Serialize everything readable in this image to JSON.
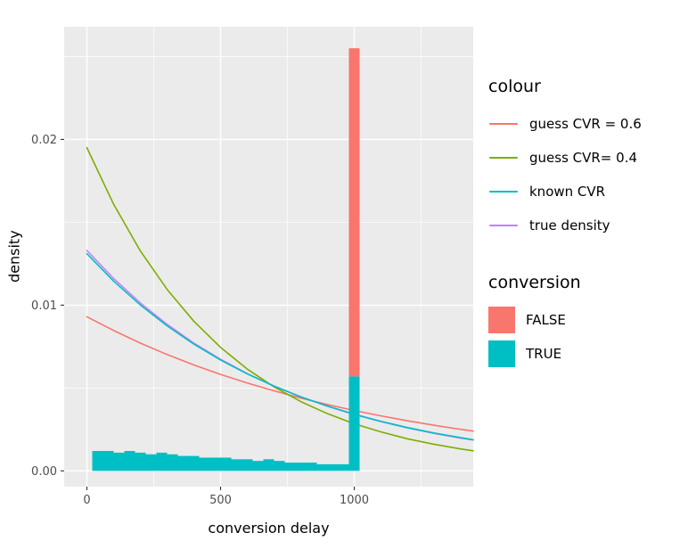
{
  "figure": {
    "background": "#FFFFFF",
    "panel_bg": "#EBEBEB",
    "grid_color": "#FFFFFF",
    "tick_color": "#333333",
    "tick_label_color": "#4D4D4D",
    "axis_title_color": "#000000"
  },
  "chart_data": {
    "type": "histogram+line",
    "title": "",
    "xlabel": "conversion delay",
    "ylabel": "density",
    "xlim": [
      -85,
      1445
    ],
    "ylim": [
      -0.00095,
      0.0268
    ],
    "grid": true,
    "legend_position": "right",
    "x_ticks": [
      {
        "value": 0,
        "label": "0"
      },
      {
        "value": 500,
        "label": "500"
      },
      {
        "value": 1000,
        "label": "1000"
      }
    ],
    "y_ticks": [
      {
        "value": 0,
        "label": "0.00"
      },
      {
        "value": 0.01,
        "label": "0.01"
      },
      {
        "value": 0.02,
        "label": "0.02"
      }
    ],
    "x_minor": [
      250,
      750,
      1250
    ],
    "y_minor": [
      0.005,
      0.015,
      0.025
    ],
    "histogram": {
      "bin_width": 40,
      "true_color": "#00BFC4",
      "false_color": "#F8766D",
      "true_bins": {
        "x0": 20,
        "heights": [
          0.0012,
          0.0012,
          0.0011,
          0.0012,
          0.0011,
          0.001,
          0.0011,
          0.001,
          0.0009,
          0.0009,
          0.0008,
          0.0008,
          0.0008,
          0.0007,
          0.0007,
          0.0006,
          0.0007,
          0.0006,
          0.0005,
          0.0005,
          0.0005,
          0.0004,
          0.0004,
          0.0004
        ]
      },
      "stacked_bin": {
        "x0": 980,
        "true_height": 0.0057,
        "false_height": 0.0198
      }
    },
    "line_x": [
      0,
      100,
      200,
      300,
      400,
      500,
      600,
      700,
      800,
      900,
      1000,
      1100,
      1200,
      1300,
      1400,
      1445
    ],
    "series": [
      {
        "name": "guess CVR = 0.6",
        "color": "#F8766D",
        "y": [
          0.0093,
          0.00847,
          0.00771,
          0.00702,
          0.00639,
          0.00582,
          0.0053,
          0.00483,
          0.00439,
          0.004,
          0.00364,
          0.00332,
          0.00302,
          0.00275,
          0.0025,
          0.0024
        ]
      },
      {
        "name": "guess CVR= 0.4",
        "color": "#7CAE00",
        "y": [
          0.0195,
          0.01609,
          0.01327,
          0.01095,
          0.00903,
          0.00745,
          0.00614,
          0.00507,
          0.00418,
          0.00345,
          0.00284,
          0.00235,
          0.00193,
          0.0016,
          0.00132,
          0.00121
        ]
      },
      {
        "name": "true density",
        "color": "#C77CFF",
        "y": [
          0.0133,
          0.01161,
          0.01013,
          0.00884,
          0.00771,
          0.00673,
          0.00587,
          0.00512,
          0.00447,
          0.0039,
          0.0034,
          0.00297,
          0.00259,
          0.00226,
          0.00197,
          0.00186
        ]
      },
      {
        "name": "known CVR",
        "color": "#00BFC4",
        "y": [
          0.0131,
          0.01145,
          0.01001,
          0.00875,
          0.00765,
          0.00669,
          0.00585,
          0.00511,
          0.00447,
          0.00391,
          0.00342,
          0.00299,
          0.00261,
          0.00228,
          0.002,
          0.00188
        ]
      }
    ]
  },
  "legend": {
    "colour": {
      "title": "colour",
      "items": [
        {
          "label": "guess CVR = 0.6",
          "color": "#F8766D"
        },
        {
          "label": "guess CVR= 0.4",
          "color": "#7CAE00"
        },
        {
          "label": "known CVR",
          "color": "#00BFC4"
        },
        {
          "label": "true density",
          "color": "#C77CFF"
        }
      ]
    },
    "conversion": {
      "title": "conversion",
      "items": [
        {
          "label": "FALSE",
          "color": "#F8766D"
        },
        {
          "label": "TRUE",
          "color": "#00BFC4"
        }
      ]
    }
  }
}
